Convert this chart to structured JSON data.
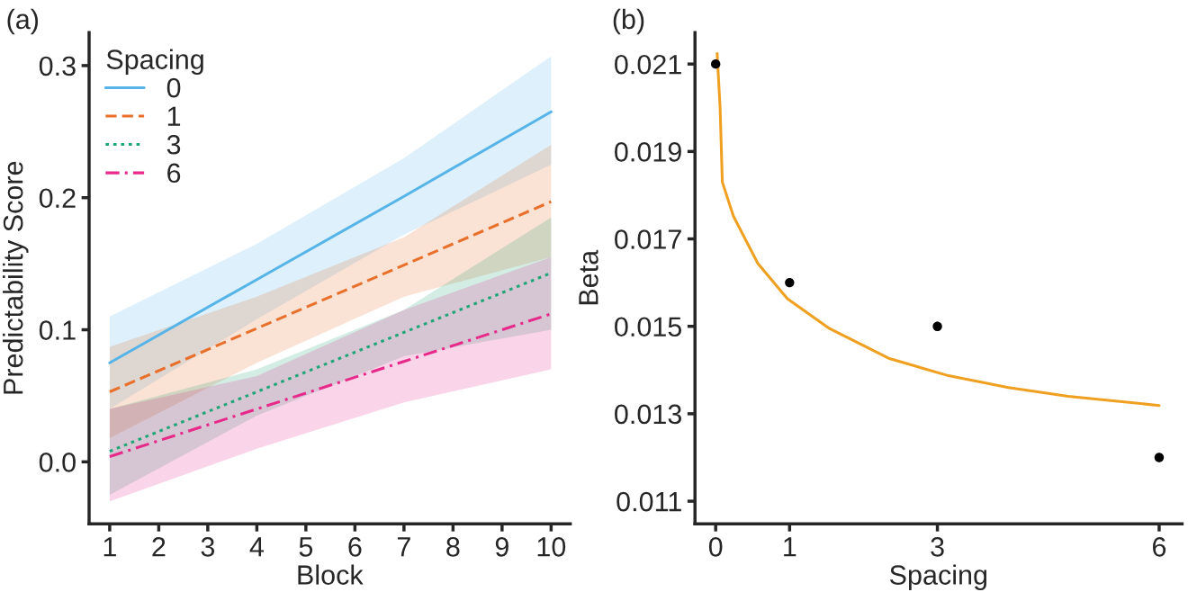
{
  "chart_data": [
    {
      "type": "line",
      "xlabel": "Block",
      "ylabel": "Predictability Score",
      "legend_title": "Spacing",
      "legend": "top left",
      "grid": false,
      "annotations": [
        "(a)"
      ],
      "xlim": [
        0.58,
        10.39
      ],
      "xticks": [
        1,
        2,
        3,
        4,
        5,
        6,
        7,
        8,
        9,
        10
      ],
      "ylim": [
        -0.047,
        0.325
      ],
      "yticks": [
        {
          "value": 0,
          "label": "0.0"
        },
        0.1,
        0.2,
        0.3
      ],
      "series": [
        {
          "name": "0",
          "color": "#56b4e9",
          "line_style": "solid",
          "x": [
            1,
            4,
            7,
            10
          ],
          "values": [
            0.075,
            0.138,
            0.201,
            0.265
          ],
          "lower": [
            0.04,
            0.108,
            0.172,
            0.225
          ],
          "upper": [
            0.11,
            0.165,
            0.23,
            0.307
          ]
        },
        {
          "name": "1",
          "color": "#e8702a",
          "line_style": "dashed",
          "x": [
            1,
            4,
            7,
            10
          ],
          "values": [
            0.053,
            0.101,
            0.149,
            0.197
          ],
          "lower": [
            0.018,
            0.075,
            0.125,
            0.155
          ],
          "upper": [
            0.087,
            0.125,
            0.17,
            0.24
          ]
        },
        {
          "name": "3",
          "color": "#21a67a",
          "line_style": "dotted",
          "x": [
            1,
            4,
            7,
            10
          ],
          "values": [
            0.008,
            0.053,
            0.098,
            0.143
          ],
          "lower": [
            -0.025,
            0.035,
            0.08,
            0.1
          ],
          "upper": [
            0.04,
            0.07,
            0.115,
            0.185
          ]
        },
        {
          "name": "6",
          "color": "#e7298a",
          "line_style": "dashdot",
          "x": [
            1,
            4,
            7,
            10
          ],
          "values": [
            0.004,
            0.04,
            0.076,
            0.112
          ],
          "lower": [
            -0.03,
            0.01,
            0.045,
            0.07
          ],
          "upper": [
            0.04,
            0.065,
            0.115,
            0.155
          ]
        }
      ]
    },
    {
      "type": "scatter",
      "xlabel": "Spacing",
      "ylabel": "Beta",
      "grid": false,
      "legend": false,
      "annotations": [
        "(b)"
      ],
      "xlim": [
        -0.28,
        6.31
      ],
      "xticks": [
        0,
        1,
        3,
        6
      ],
      "ylim": [
        0.01048,
        0.02172
      ],
      "yticks": [
        0.011,
        0.013,
        0.015,
        0.017,
        0.019,
        0.021
      ],
      "series": [
        {
          "type": "scatter",
          "color": "#000000",
          "x": [
            0,
            1,
            3,
            6
          ],
          "values": [
            0.021,
            0.016,
            0.015,
            0.012
          ]
        },
        {
          "type": "line",
          "color": "#f0a020",
          "line_style": "solid",
          "x": [
            0.02,
            0.06,
            0.09,
            0.24,
            0.57,
            0.97,
            1.54,
            2.34,
            3.15,
            3.96,
            4.77,
            6
          ],
          "values": [
            0.02124,
            0.02,
            0.0183,
            0.01752,
            0.01644,
            0.01563,
            0.01495,
            0.01427,
            0.01387,
            0.0136,
            0.0134,
            0.01319
          ]
        }
      ]
    }
  ]
}
